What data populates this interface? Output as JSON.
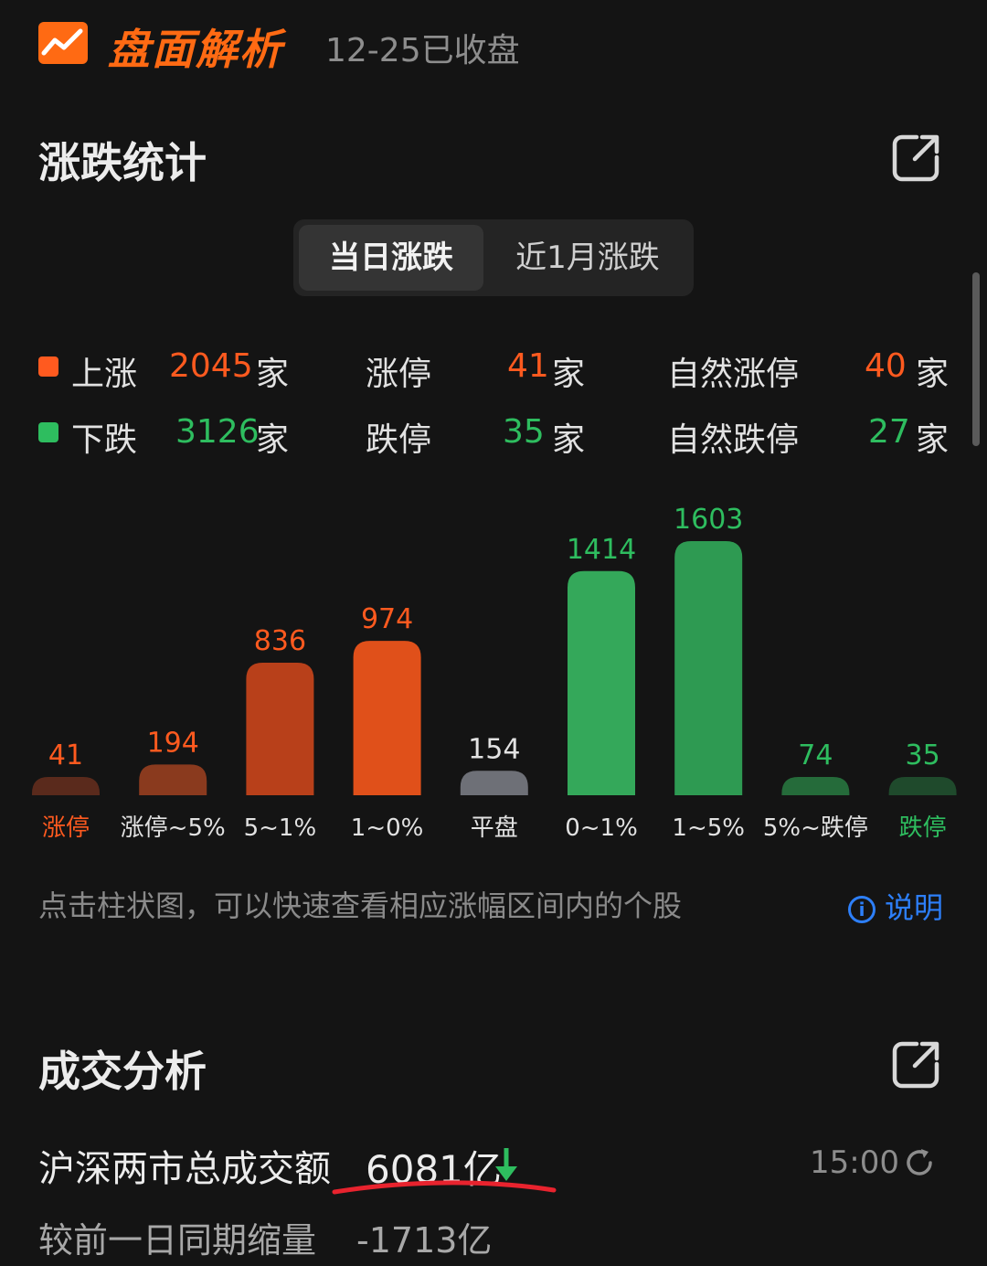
{
  "header": {
    "logo": "trend-chart-icon",
    "title": "盘面解析",
    "status": "12-25已收盘"
  },
  "rise_fall": {
    "title": "涨跌统计",
    "tabs": [
      "当日涨跌",
      "近1月涨跌"
    ],
    "active_tab": 0,
    "unit": "家",
    "rows": [
      {
        "label": "上涨",
        "value": "2045",
        "limit_label": "涨停",
        "limit_value": "41",
        "natural_label": "自然涨停",
        "natural_value": "40"
      },
      {
        "label": "下跌",
        "value": "3126",
        "limit_label": "跌停",
        "limit_value": "35",
        "natural_label": "自然跌停",
        "natural_value": "27"
      }
    ],
    "hint": "点击柱状图，可以快速查看相应涨幅区间内的个股",
    "help": "说明"
  },
  "chart_data": {
    "type": "bar",
    "categories": [
      "涨停",
      "涨停~5%",
      "5~1%",
      "1~0%",
      "平盘",
      "0~1%",
      "1~5%",
      "5%~跌停",
      "跌停"
    ],
    "values": [
      41,
      194,
      836,
      974,
      154,
      1414,
      1603,
      74,
      35
    ],
    "bar_colors": [
      "#5a2a1c",
      "#8a3a1e",
      "#b8401a",
      "#e0501a",
      "#6e7077",
      "#34a85a",
      "#2e9a52",
      "#256b3a",
      "#1f4a2c"
    ],
    "label_colors": [
      "#ff5a1f",
      "#e2e2e2",
      "#e2e2e2",
      "#e2e2e2",
      "#e2e2e2",
      "#e2e2e2",
      "#e2e2e2",
      "#e2e2e2",
      "#2ebd5f"
    ],
    "value_colors": [
      "#ff5a1f",
      "#ff5a1f",
      "#ff5a1f",
      "#ff5a1f",
      "#e2e2e2",
      "#2ebd5f",
      "#2ebd5f",
      "#2ebd5f",
      "#2ebd5f"
    ]
  },
  "turnover": {
    "title": "成交分析",
    "label": "沪深两市总成交额",
    "value": "6081亿",
    "time": "15:00",
    "compare_label": "较前一日同期缩量",
    "compare_value": "-1713亿"
  },
  "colors": {
    "accent": "#ff6a13",
    "up": "#ff5a1f",
    "down": "#2ebd5f",
    "link": "#2d7ff9"
  }
}
